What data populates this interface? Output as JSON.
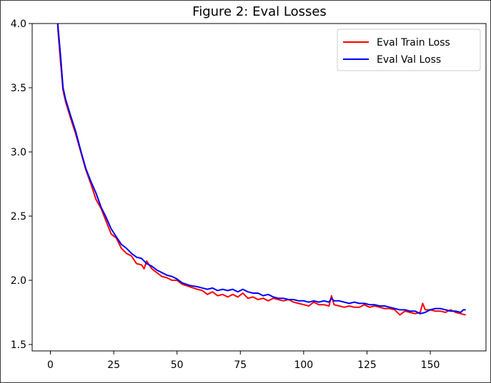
{
  "chart_data": {
    "type": "line",
    "title": "Figure 2: Eval Losses",
    "xlabel": "",
    "ylabel": "",
    "xlim": [
      -7.2,
      172
    ],
    "ylim": [
      1.45,
      4.0
    ],
    "x_ticks": [
      0,
      25,
      50,
      75,
      100,
      125,
      150
    ],
    "y_ticks": [
      1.5,
      2.0,
      2.5,
      3.0,
      3.5,
      4.0
    ],
    "x_tick_labels": [
      "0",
      "25",
      "50",
      "75",
      "100",
      "125",
      "150"
    ],
    "y_tick_labels": [
      "1.5",
      "2.0",
      "2.5",
      "3.0",
      "3.5",
      "4.0"
    ],
    "grid": false,
    "legend_position": "top-right",
    "series": [
      {
        "name": "Eval Train Loss",
        "color": "#ff0000",
        "points": [
          [
            2,
            4.35
          ],
          [
            3,
            3.95
          ],
          [
            4,
            3.7
          ],
          [
            5,
            3.48
          ],
          [
            6,
            3.39
          ],
          [
            8,
            3.26
          ],
          [
            10,
            3.14
          ],
          [
            12,
            3.0
          ],
          [
            14,
            2.86
          ],
          [
            16,
            2.75
          ],
          [
            18,
            2.63
          ],
          [
            20,
            2.56
          ],
          [
            22,
            2.46
          ],
          [
            24,
            2.36
          ],
          [
            26,
            2.33
          ],
          [
            28,
            2.25
          ],
          [
            30,
            2.21
          ],
          [
            32,
            2.19
          ],
          [
            34,
            2.13
          ],
          [
            36,
            2.12
          ],
          [
            37,
            2.09
          ],
          [
            38,
            2.15
          ],
          [
            40,
            2.09
          ],
          [
            42,
            2.06
          ],
          [
            44,
            2.03
          ],
          [
            46,
            2.02
          ],
          [
            48,
            2.0
          ],
          [
            50,
            2.0
          ],
          [
            52,
            1.97
          ],
          [
            55,
            1.95
          ],
          [
            58,
            1.93
          ],
          [
            60,
            1.92
          ],
          [
            62,
            1.89
          ],
          [
            64,
            1.91
          ],
          [
            66,
            1.88
          ],
          [
            68,
            1.89
          ],
          [
            70,
            1.87
          ],
          [
            72,
            1.89
          ],
          [
            74,
            1.87
          ],
          [
            76,
            1.9
          ],
          [
            78,
            1.86
          ],
          [
            80,
            1.87
          ],
          [
            82,
            1.85
          ],
          [
            84,
            1.86
          ],
          [
            86,
            1.84
          ],
          [
            88,
            1.86
          ],
          [
            90,
            1.85
          ],
          [
            92,
            1.84
          ],
          [
            94,
            1.85
          ],
          [
            96,
            1.83
          ],
          [
            98,
            1.82
          ],
          [
            100,
            1.81
          ],
          [
            102,
            1.8
          ],
          [
            104,
            1.83
          ],
          [
            106,
            1.81
          ],
          [
            108,
            1.81
          ],
          [
            110,
            1.8
          ],
          [
            111,
            1.88
          ],
          [
            112,
            1.81
          ],
          [
            114,
            1.8
          ],
          [
            116,
            1.79
          ],
          [
            118,
            1.8
          ],
          [
            120,
            1.79
          ],
          [
            122,
            1.79
          ],
          [
            124,
            1.81
          ],
          [
            126,
            1.79
          ],
          [
            128,
            1.8
          ],
          [
            130,
            1.79
          ],
          [
            132,
            1.78
          ],
          [
            134,
            1.78
          ],
          [
            136,
            1.77
          ],
          [
            138,
            1.73
          ],
          [
            140,
            1.76
          ],
          [
            142,
            1.75
          ],
          [
            144,
            1.74
          ],
          [
            146,
            1.75
          ],
          [
            147,
            1.82
          ],
          [
            148,
            1.77
          ],
          [
            150,
            1.77
          ],
          [
            152,
            1.76
          ],
          [
            154,
            1.76
          ],
          [
            156,
            1.75
          ],
          [
            158,
            1.77
          ],
          [
            160,
            1.75
          ],
          [
            162,
            1.74
          ],
          [
            164,
            1.73
          ]
        ]
      },
      {
        "name": "Eval Val Loss",
        "color": "#0000ff",
        "points": [
          [
            2,
            4.35
          ],
          [
            3,
            3.98
          ],
          [
            4,
            3.75
          ],
          [
            5,
            3.5
          ],
          [
            6,
            3.41
          ],
          [
            8,
            3.28
          ],
          [
            10,
            3.16
          ],
          [
            12,
            3.01
          ],
          [
            14,
            2.87
          ],
          [
            16,
            2.77
          ],
          [
            18,
            2.68
          ],
          [
            20,
            2.57
          ],
          [
            22,
            2.49
          ],
          [
            24,
            2.4
          ],
          [
            26,
            2.34
          ],
          [
            28,
            2.28
          ],
          [
            30,
            2.25
          ],
          [
            32,
            2.21
          ],
          [
            34,
            2.18
          ],
          [
            36,
            2.17
          ],
          [
            38,
            2.13
          ],
          [
            40,
            2.11
          ],
          [
            42,
            2.08
          ],
          [
            44,
            2.06
          ],
          [
            46,
            2.04
          ],
          [
            48,
            2.03
          ],
          [
            50,
            2.01
          ],
          [
            52,
            1.98
          ],
          [
            55,
            1.96
          ],
          [
            58,
            1.95
          ],
          [
            60,
            1.94
          ],
          [
            62,
            1.93
          ],
          [
            64,
            1.94
          ],
          [
            66,
            1.92
          ],
          [
            68,
            1.93
          ],
          [
            70,
            1.92
          ],
          [
            72,
            1.93
          ],
          [
            74,
            1.91
          ],
          [
            76,
            1.93
          ],
          [
            78,
            1.91
          ],
          [
            80,
            1.9
          ],
          [
            82,
            1.9
          ],
          [
            84,
            1.88
          ],
          [
            86,
            1.89
          ],
          [
            88,
            1.87
          ],
          [
            90,
            1.86
          ],
          [
            92,
            1.86
          ],
          [
            94,
            1.85
          ],
          [
            96,
            1.85
          ],
          [
            98,
            1.84
          ],
          [
            100,
            1.84
          ],
          [
            102,
            1.83
          ],
          [
            104,
            1.84
          ],
          [
            106,
            1.83
          ],
          [
            108,
            1.84
          ],
          [
            110,
            1.83
          ],
          [
            111,
            1.86
          ],
          [
            112,
            1.84
          ],
          [
            114,
            1.84
          ],
          [
            116,
            1.83
          ],
          [
            118,
            1.82
          ],
          [
            120,
            1.83
          ],
          [
            122,
            1.82
          ],
          [
            124,
            1.82
          ],
          [
            126,
            1.81
          ],
          [
            128,
            1.81
          ],
          [
            130,
            1.8
          ],
          [
            132,
            1.8
          ],
          [
            134,
            1.79
          ],
          [
            136,
            1.78
          ],
          [
            138,
            1.77
          ],
          [
            140,
            1.77
          ],
          [
            142,
            1.76
          ],
          [
            144,
            1.76
          ],
          [
            146,
            1.74
          ],
          [
            148,
            1.75
          ],
          [
            150,
            1.77
          ],
          [
            152,
            1.78
          ],
          [
            154,
            1.78
          ],
          [
            156,
            1.77
          ],
          [
            158,
            1.76
          ],
          [
            160,
            1.76
          ],
          [
            162,
            1.75
          ],
          [
            163,
            1.77
          ],
          [
            164,
            1.77
          ]
        ]
      }
    ]
  }
}
